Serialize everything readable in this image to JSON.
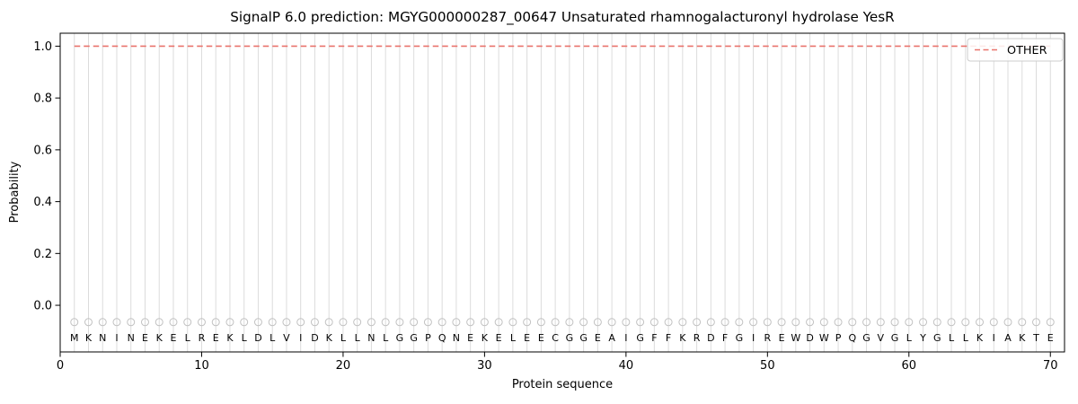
{
  "chart": {
    "title": "SignalP 6.0 prediction: MGYG000000287_00647 Unsaturated rhamnogalacturonyl hydrolase YesR",
    "xlabel": "Protein sequence",
    "ylabel": "Probability",
    "legend": {
      "entries": [
        {
          "label": "OTHER",
          "style": "dashed",
          "color": "#e9736c"
        }
      ],
      "position": "upper right"
    }
  },
  "chart_data": {
    "type": "line",
    "title": "SignalP 6.0 prediction: MGYG000000287_00647 Unsaturated rhamnogalacturonyl hydrolase YesR",
    "xlabel": "Protein sequence",
    "ylabel": "Probability",
    "xlim": [
      0,
      71
    ],
    "ylim": [
      -0.18,
      1.05
    ],
    "xticks": [
      0,
      10,
      20,
      30,
      40,
      50,
      60,
      70
    ],
    "yticks": [
      0.0,
      0.2,
      0.4,
      0.6,
      0.8,
      1.0
    ],
    "grid": "light vertical gridline at every residue position",
    "legend_position": "upper right",
    "sequence": "MKNINEKELREKLDLVIDKLLNLGGPQNEKELEECGGEAIGFFKRDFGIREWDWPQGVGLYGLLKIAKTE",
    "series": [
      {
        "name": "OTHER",
        "style": "dashed",
        "color": "#e9736c",
        "x_start": 1,
        "x_end": 70,
        "constant_value": 1.0
      }
    ],
    "markers": {
      "symbol": "open-circle",
      "color": "#c2c2c2",
      "y": -0.065,
      "count": 70
    },
    "letter_row_y": -0.125,
    "colors": {
      "grid": "#dcdcdc",
      "spine": "#000000",
      "marker": "#c2c2c2",
      "other_line": "#e9736c",
      "legend_border": "#cccccc"
    }
  }
}
